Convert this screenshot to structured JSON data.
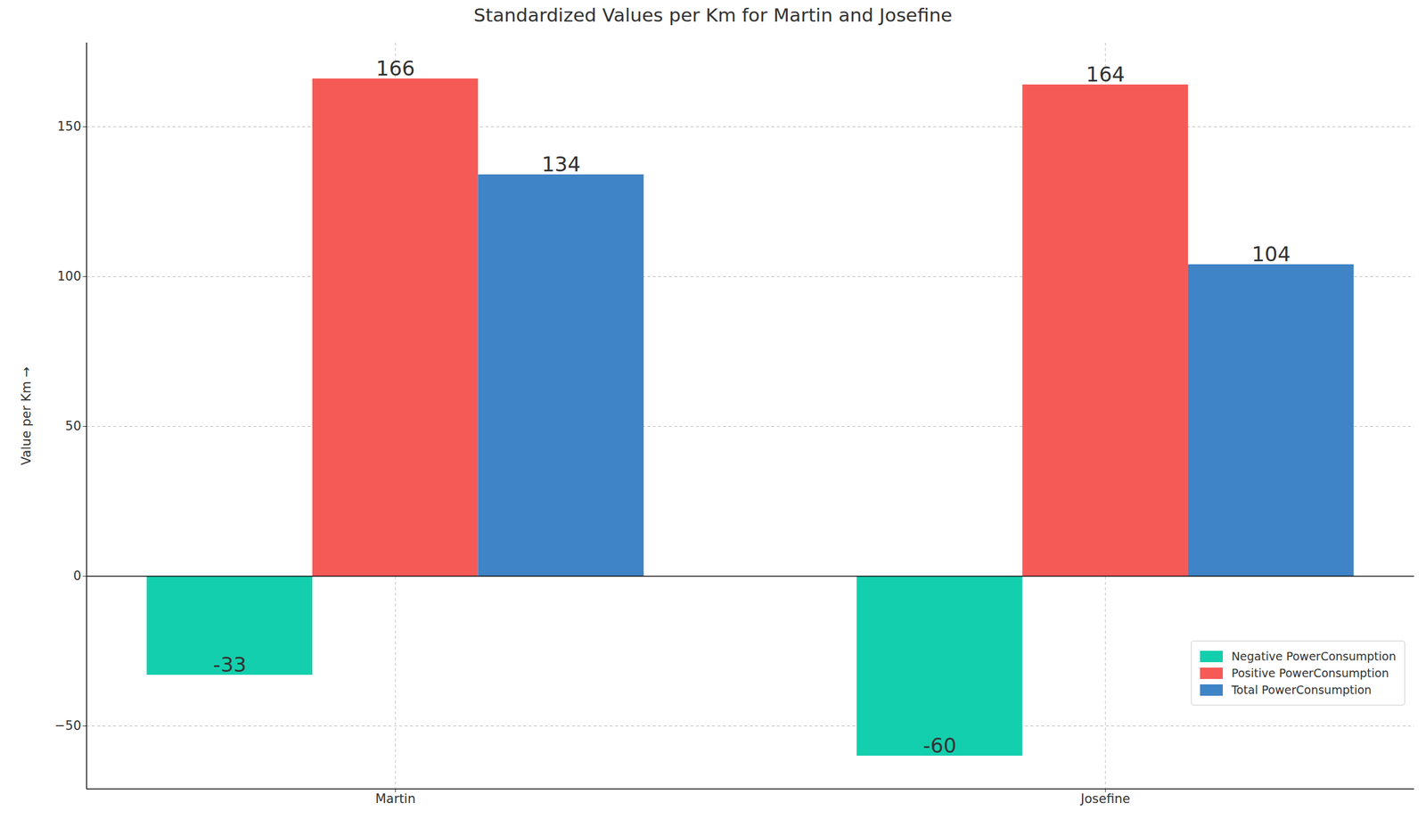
{
  "chart_data": {
    "type": "bar",
    "title": "Standardized Values per Km for Martin and Josefine",
    "ylabel": "Value per Km",
    "categories": [
      "Martin",
      "Josefine"
    ],
    "series": [
      {
        "name": "Negative PowerConsumption",
        "color": "#13cfad",
        "values": [
          -33,
          -60
        ]
      },
      {
        "name": "Positive PowerConsumption",
        "color": "#f65a57",
        "values": [
          166,
          164
        ]
      },
      {
        "name": "Total PowerConsumption",
        "color": "#3f84c6",
        "values": [
          134,
          104
        ]
      }
    ],
    "ylim": [
      -71,
      178
    ],
    "yticks": [
      -50,
      0,
      50,
      100,
      150
    ],
    "grid": true,
    "legend": "lower right",
    "data_labels": true
  }
}
